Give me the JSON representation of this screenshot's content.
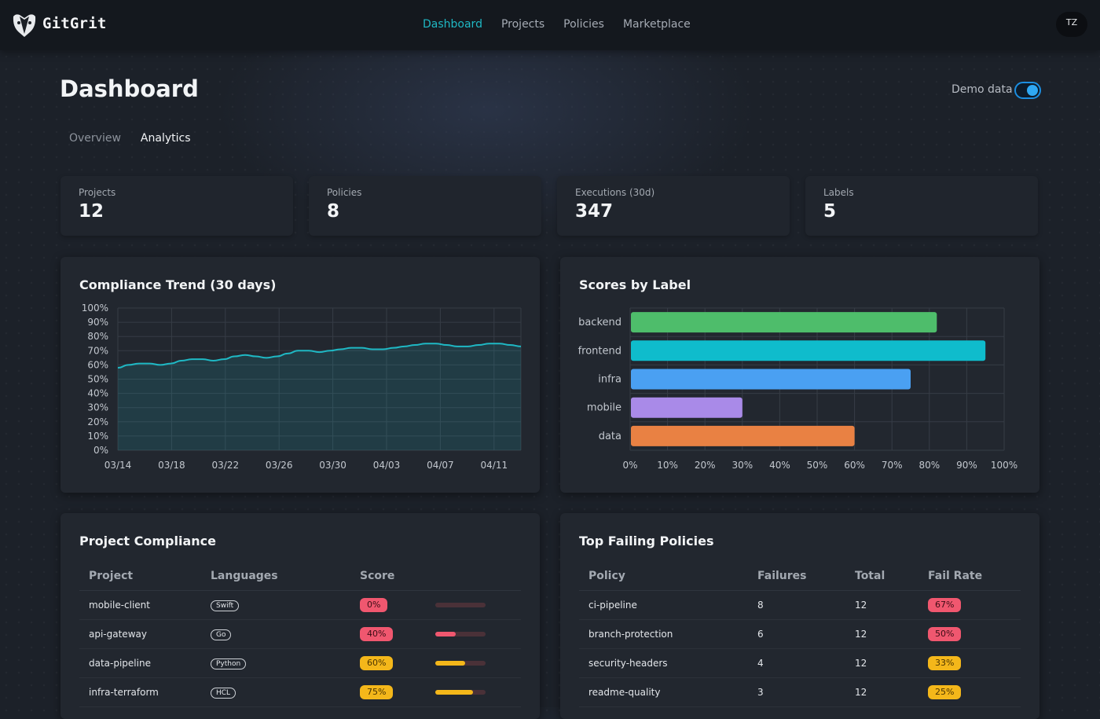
{
  "app": {
    "name": "GitGrit",
    "user_initials": "TZ"
  },
  "nav": {
    "items": [
      "Dashboard",
      "Projects",
      "Policies",
      "Marketplace"
    ],
    "active": "Dashboard"
  },
  "page": {
    "title": "Dashboard",
    "demo_label": "Demo data",
    "demo_enabled": true,
    "tabs": [
      "Overview",
      "Analytics"
    ],
    "active_tab": "Analytics"
  },
  "stats": [
    {
      "label": "Projects",
      "value": "12"
    },
    {
      "label": "Policies",
      "value": "8"
    },
    {
      "label": "Executions (30d)",
      "value": "347"
    },
    {
      "label": "Labels",
      "value": "5"
    }
  ],
  "trend": {
    "title": "Compliance Trend (30 days)",
    "line_color": "#1fb8c4"
  },
  "scores": {
    "title": "Scores by Label"
  },
  "chart_data": [
    {
      "type": "area",
      "title": "Compliance Trend (30 days)",
      "x_ticks": [
        "03/14",
        "03/18",
        "03/22",
        "03/26",
        "03/30",
        "04/03",
        "04/07",
        "04/11"
      ],
      "y_ticks": [
        "0%",
        "10%",
        "20%",
        "30%",
        "40%",
        "50%",
        "60%",
        "70%",
        "80%",
        "90%",
        "100%"
      ],
      "ylim": [
        0,
        100
      ],
      "grid": true,
      "series": [
        {
          "values": [
            58,
            60,
            61,
            61,
            60,
            61,
            63,
            64,
            64,
            63,
            64,
            66,
            67,
            66,
            65,
            66,
            68,
            70,
            70,
            69,
            70,
            71,
            72,
            72,
            71,
            71,
            72,
            73,
            74,
            75,
            75,
            74,
            73,
            73,
            74,
            75,
            75,
            74,
            73
          ]
        }
      ]
    },
    {
      "type": "bar",
      "orientation": "horizontal",
      "title": "Scores by Label",
      "categories": [
        "backend",
        "frontend",
        "infra",
        "mobile",
        "data"
      ],
      "values": [
        82,
        95,
        75,
        30,
        60
      ],
      "colors": [
        "#4ebd6b",
        "#0fbccc",
        "#4aa0f2",
        "#a98ae8",
        "#e98143"
      ],
      "x_ticks": [
        "0%",
        "10%",
        "20%",
        "30%",
        "40%",
        "50%",
        "60%",
        "70%",
        "80%",
        "90%",
        "100%"
      ],
      "xlim": [
        0,
        100
      ],
      "grid": true
    }
  ],
  "project_compliance": {
    "title": "Project Compliance",
    "headers": [
      "Project",
      "Languages",
      "Score",
      ""
    ],
    "rows": [
      {
        "project": "mobile-client",
        "language": "Swift",
        "score": "0%",
        "score_value": 0,
        "tone": "red"
      },
      {
        "project": "api-gateway",
        "language": "Go",
        "score": "40%",
        "score_value": 40,
        "tone": "red"
      },
      {
        "project": "data-pipeline",
        "language": "Python",
        "score": "60%",
        "score_value": 60,
        "tone": "yellow"
      },
      {
        "project": "infra-terraform",
        "language": "HCL",
        "score": "75%",
        "score_value": 75,
        "tone": "yellow"
      }
    ]
  },
  "top_failing": {
    "title": "Top Failing Policies",
    "headers": [
      "Policy",
      "Failures",
      "Total",
      "Fail Rate"
    ],
    "rows": [
      {
        "policy": "ci-pipeline",
        "failures": "8",
        "total": "12",
        "rate": "67%",
        "tone": "red"
      },
      {
        "policy": "branch-protection",
        "failures": "6",
        "total": "12",
        "rate": "50%",
        "tone": "red"
      },
      {
        "policy": "security-headers",
        "failures": "4",
        "total": "12",
        "rate": "33%",
        "tone": "yellow"
      },
      {
        "policy": "readme-quality",
        "failures": "3",
        "total": "12",
        "rate": "25%",
        "tone": "yellow"
      }
    ]
  },
  "colors": {
    "accent": "#1fb8c4",
    "danger": "#f0576f",
    "warning": "#f4b71a",
    "toggle": "#2fa8f3"
  }
}
